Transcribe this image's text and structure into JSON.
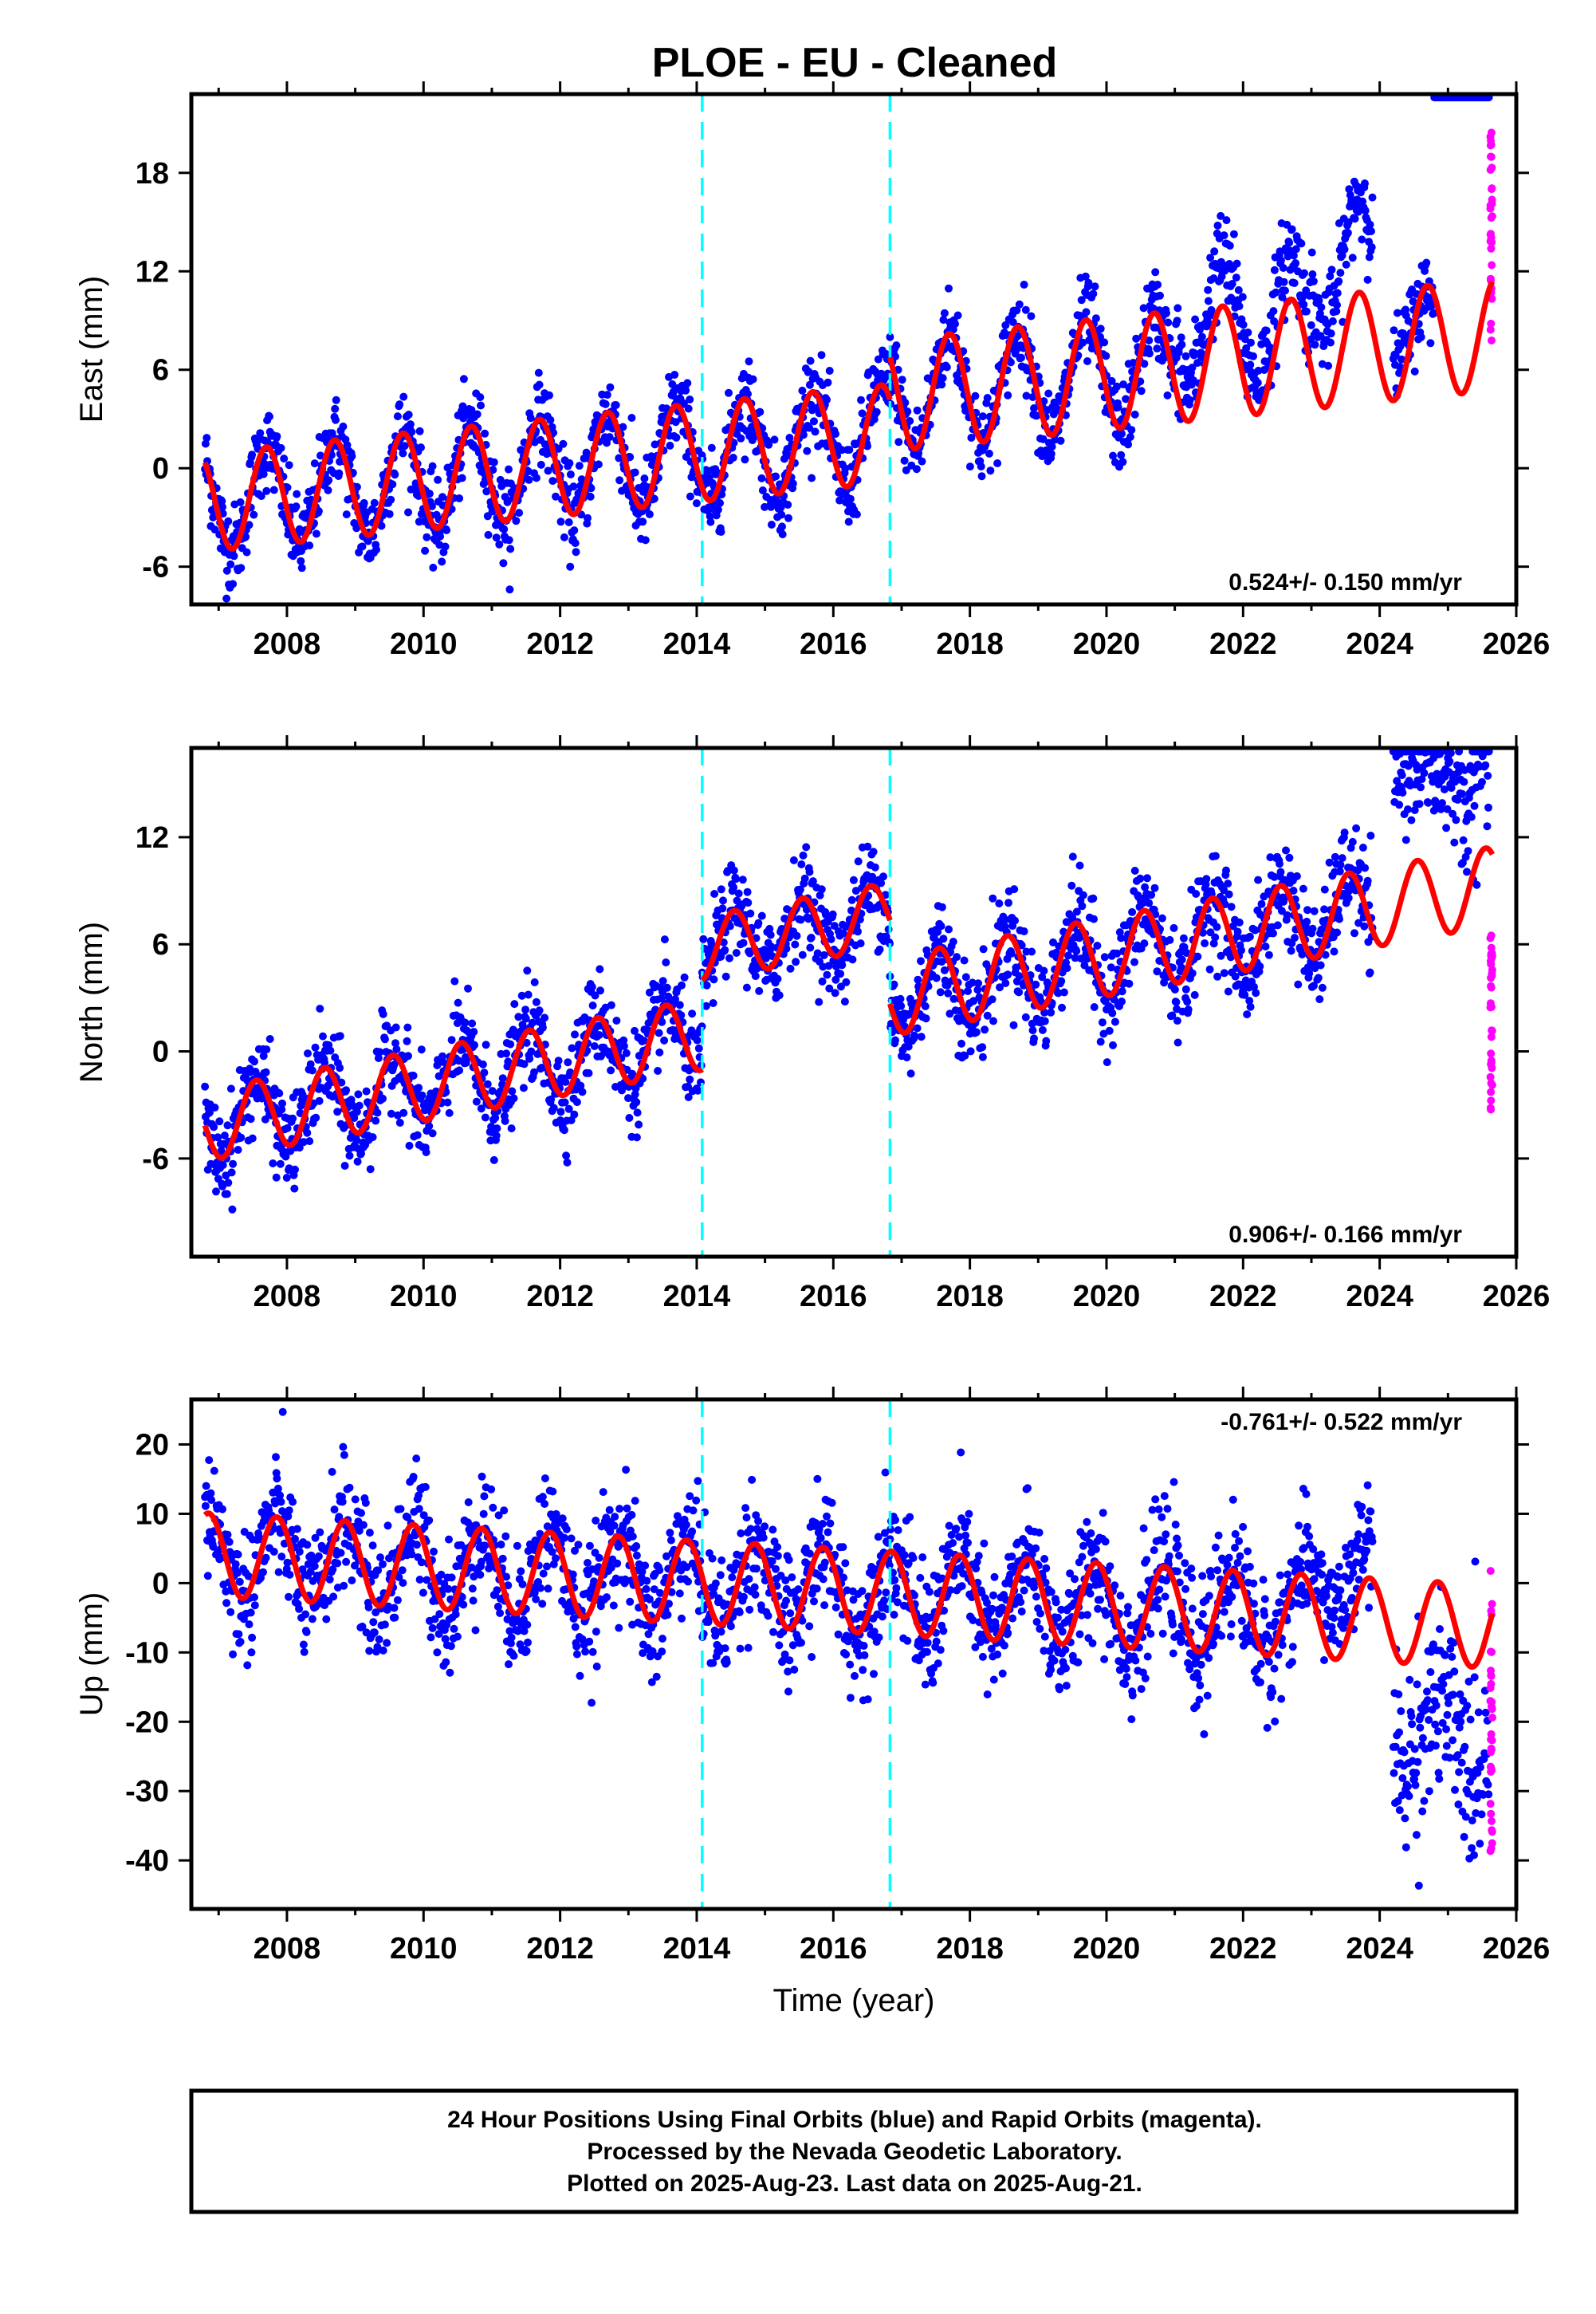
{
  "title": "PLOE  - EU - Cleaned",
  "colors": {
    "final_orbits": "#0000ff",
    "rapid_orbits": "#ff00ff",
    "model_fit": "#ff0000",
    "event_lines": "#00ffff",
    "frame": "#000000"
  },
  "chart_data": [
    {
      "type": "scatter",
      "name": "east",
      "ylabel": "East (mm)",
      "xlabel": "",
      "xlim": [
        2006.6,
        2026.0
      ],
      "ylim": [
        -8.3,
        22.8
      ],
      "y_ticks": [
        -6,
        0,
        6,
        12,
        18
      ],
      "x_ticks": [
        2008,
        2010,
        2012,
        2014,
        2016,
        2018,
        2020,
        2022,
        2024,
        2026
      ],
      "event_lines": [
        2014.08,
        2016.83
      ],
      "rate_text": "0.524+/- 0.150 mm/yr",
      "rate_position": "bottom-right",
      "series": [
        {
          "name": "Final Orbits",
          "kind": "points",
          "color": "#0000ff",
          "segments": [
            {
              "from": 2006.8,
              "to": 2016.83,
              "offset": -2.0,
              "trend": 0.42,
              "amp": 3.0,
              "phase": 0.45,
              "noise": 1.3
            },
            {
              "from": 2016.83,
              "to": 2021.0,
              "offset": 0.3,
              "trend": 0.42,
              "amp": 3.4,
              "phase": 0.45,
              "noise": 1.3
            },
            {
              "from": 2021.0,
              "to": 2023.0,
              "offset": 2.8,
              "trend": 0.42,
              "amp": 3.6,
              "phase": 0.45,
              "noise": 1.5
            },
            {
              "from": 2023.0,
              "to": 2023.9,
              "offset": 6.0,
              "trend": 0.4,
              "amp": 4.0,
              "phase": 0.45,
              "noise": 1.3
            },
            {
              "from": 2024.2,
              "to": 2024.8,
              "offset": 1.5,
              "trend": 0.4,
              "amp": 2.0,
              "phase": 0.45,
              "noise": 1.3
            },
            {
              "from": 2024.8,
              "to": 2025.6,
              "offset": 0.5,
              "trend": 3.0,
              "amp": 3.0,
              "phase": 0.45,
              "noise": 1.5
            }
          ]
        },
        {
          "name": "Rapid Orbits",
          "kind": "points",
          "color": "#ff00ff",
          "x_range": [
            2025.62,
            2025.65
          ],
          "y_range": [
            7.5,
            21.5
          ]
        },
        {
          "name": "Model fit",
          "kind": "line",
          "color": "#ff0000",
          "segments": [
            {
              "from": 2006.8,
              "to": 2016.83,
              "offset": -2.0,
              "trend": 0.42,
              "amp": 3.0,
              "phase": 0.45
            },
            {
              "from": 2016.83,
              "to": 2025.65,
              "offset": 0.3,
              "trend": 0.42,
              "amp": 3.4,
              "phase": 0.45
            }
          ]
        }
      ]
    },
    {
      "type": "scatter",
      "name": "north",
      "ylabel": "North (mm)",
      "xlabel": "",
      "xlim": [
        2006.6,
        2026.0
      ],
      "ylim": [
        -11.5,
        17.0
      ],
      "y_ticks": [
        -6,
        0,
        6,
        12
      ],
      "x_ticks": [
        2008,
        2010,
        2012,
        2014,
        2016,
        2018,
        2020,
        2022,
        2024,
        2026
      ],
      "event_lines": [
        2014.08,
        2016.83
      ],
      "rate_text": "0.906+/- 0.166 mm/yr",
      "rate_position": "bottom-right",
      "series": [
        {
          "name": "Final Orbits",
          "kind": "points",
          "color": "#0000ff",
          "segments": [
            {
              "from": 2006.8,
              "to": 2014.08,
              "offset": -4.0,
              "trend": 0.7,
              "amp": 2.0,
              "phase": 0.3,
              "noise": 1.3
            },
            {
              "from": 2014.08,
              "to": 2016.83,
              "offset": 0.8,
              "trend": 0.7,
              "amp": 1.8,
              "phase": 0.3,
              "noise": 1.3
            },
            {
              "from": 2016.83,
              "to": 2023.9,
              "offset": -3.8,
              "trend": 0.7,
              "amp": 2.2,
              "phase": 0.3,
              "noise": 1.4
            },
            {
              "from": 2024.2,
              "to": 2025.2,
              "offset": 3.2,
              "trend": 0.7,
              "amp": 1.0,
              "phase": 0.3,
              "noise": 1.6
            },
            {
              "from": 2025.2,
              "to": 2025.6,
              "offset": 1.0,
              "trend": 0.7,
              "amp": 2.0,
              "phase": 0.3,
              "noise": 2.0
            }
          ]
        },
        {
          "name": "Rapid Orbits",
          "kind": "points",
          "color": "#ff00ff",
          "x_range": [
            2025.62,
            2025.65
          ],
          "y_range": [
            -3.5,
            6.5
          ]
        },
        {
          "name": "Model fit",
          "kind": "line",
          "color": "#ff0000",
          "segments": [
            {
              "from": 2006.8,
              "to": 2014.08,
              "offset": -4.0,
              "trend": 0.7,
              "amp": 2.0,
              "phase": 0.3
            },
            {
              "from": 2014.08,
              "to": 2016.83,
              "offset": 0.8,
              "trend": 0.7,
              "amp": 1.8,
              "phase": 0.3
            },
            {
              "from": 2016.83,
              "to": 2025.65,
              "offset": -3.8,
              "trend": 0.7,
              "amp": 2.2,
              "phase": 0.3
            }
          ]
        }
      ]
    },
    {
      "type": "scatter",
      "name": "up",
      "ylabel": "Up (mm)",
      "xlabel": "Time (year)",
      "xlim": [
        2006.6,
        2026.0
      ],
      "ylim": [
        -47.0,
        26.5
      ],
      "y_ticks": [
        -40,
        -30,
        -20,
        -10,
        0,
        10,
        20
      ],
      "x_ticks": [
        2008,
        2010,
        2012,
        2014,
        2016,
        2018,
        2020,
        2022,
        2024,
        2026
      ],
      "event_lines": [
        2014.08,
        2016.83
      ],
      "rate_text": "-0.761+/- 0.522 mm/yr",
      "rate_position": "top-right",
      "series": [
        {
          "name": "Final Orbits",
          "kind": "points",
          "color": "#0000ff",
          "segments": [
            {
              "from": 2006.8,
              "to": 2023.0,
              "offset": 4.0,
              "trend": -0.55,
              "amp": 6.0,
              "phase": 0.6,
              "noise": 4.5
            },
            {
              "from": 2023.0,
              "to": 2023.9,
              "offset": 10.0,
              "trend": -0.55,
              "amp": 5.0,
              "phase": 0.6,
              "noise": 4.0
            },
            {
              "from": 2024.2,
              "to": 2025.6,
              "offset": -12.0,
              "trend": -0.55,
              "amp": 5.0,
              "phase": 0.6,
              "noise": 7.0
            }
          ]
        },
        {
          "name": "Rapid Orbits",
          "kind": "points",
          "color": "#ff00ff",
          "x_range": [
            2025.62,
            2025.65
          ],
          "y_range": [
            -39.0,
            5.0
          ]
        },
        {
          "name": "Model fit",
          "kind": "line",
          "color": "#ff0000",
          "segments": [
            {
              "from": 2006.8,
              "to": 2025.65,
              "offset": 4.0,
              "trend": -0.55,
              "amp": 6.0,
              "phase": 0.6
            }
          ]
        }
      ]
    }
  ],
  "footer": {
    "lines": [
      "24 Hour Positions Using Final Orbits (blue) and Rapid Orbits (magenta).",
      "Processed by the Nevada Geodetic Laboratory.",
      "Plotted on 2025-Aug-23. Last data on 2025-Aug-21."
    ]
  }
}
